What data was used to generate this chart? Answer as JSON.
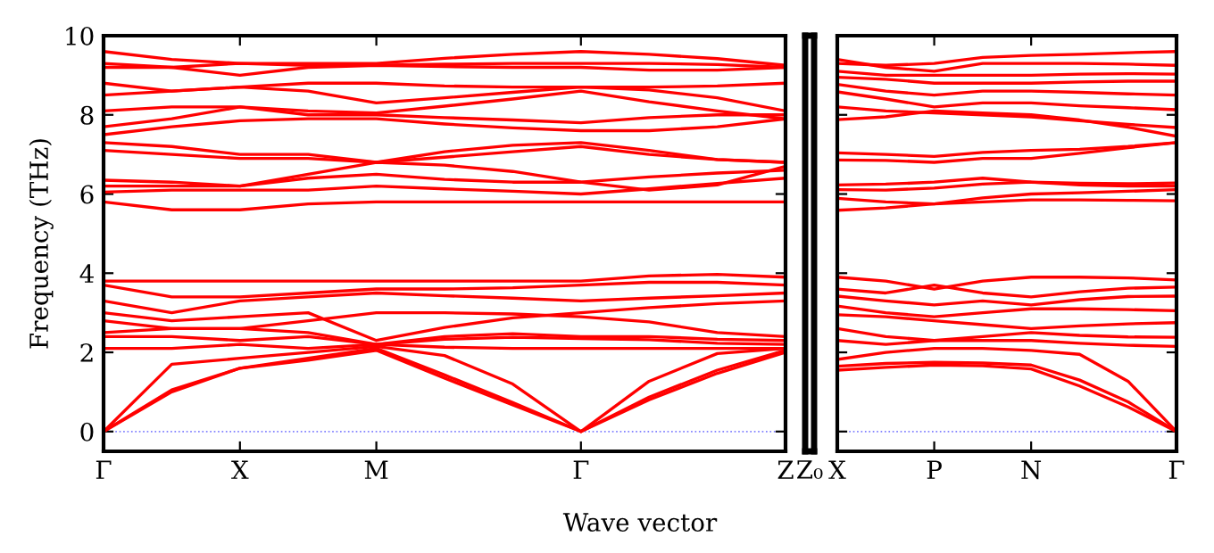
{
  "chart_data": [
    {
      "type": "line",
      "ylabel": "Frequency (THz)",
      "xlabel": "Wave vector",
      "categories": [
        "Γ",
        null,
        "X",
        null,
        "M",
        null,
        null,
        "Γ",
        null,
        null,
        "Z"
      ],
      "ylim": [
        -0.5,
        10
      ],
      "yticks": [
        0,
        2,
        4,
        6,
        8,
        10
      ],
      "grid": false,
      "marker": "none",
      "line_style": "solid",
      "ref_lines": [
        {
          "axis": "y",
          "value": 0,
          "color": "#8080ff",
          "line_style": "dotted"
        }
      ],
      "series": [
        {
          "color": "#ff0000",
          "values": [
            0,
            1.0,
            1.6,
            1.8,
            2.05,
            1.35,
            0.67,
            0,
            0.8,
            1.47,
            2.0
          ]
        },
        {
          "color": "#ff0000",
          "values": [
            0,
            1.05,
            1.6,
            1.85,
            2.1,
            1.43,
            0.73,
            0,
            0.87,
            1.55,
            2.05
          ]
        },
        {
          "color": "#ff0000",
          "values": [
            0,
            1.7,
            1.85,
            2.0,
            2.15,
            1.92,
            1.2,
            0,
            1.27,
            1.97,
            2.1
          ]
        },
        {
          "color": "#ff0000",
          "values": [
            2.1,
            2.1,
            2.2,
            2.1,
            2.2,
            2.13,
            2.1,
            2.1,
            2.1,
            2.1,
            2.1
          ]
        },
        {
          "color": "#ff0000",
          "values": [
            2.4,
            2.4,
            2.3,
            2.4,
            2.2,
            2.33,
            2.38,
            2.35,
            2.32,
            2.23,
            2.2
          ]
        },
        {
          "color": "#ff0000",
          "values": [
            2.5,
            2.6,
            2.6,
            2.5,
            2.2,
            2.4,
            2.47,
            2.4,
            2.4,
            2.33,
            2.3
          ]
        },
        {
          "color": "#ff0000",
          "values": [
            2.8,
            2.6,
            2.6,
            2.8,
            3.0,
            3.0,
            2.97,
            2.9,
            2.77,
            2.5,
            2.4
          ]
        },
        {
          "color": "#ff0000",
          "values": [
            3.0,
            2.8,
            2.9,
            3.0,
            2.3,
            2.63,
            2.87,
            3.0,
            3.13,
            3.23,
            3.3
          ]
        },
        {
          "color": "#ff0000",
          "values": [
            3.3,
            3.0,
            3.3,
            3.4,
            3.5,
            3.43,
            3.37,
            3.3,
            3.37,
            3.43,
            3.5
          ]
        },
        {
          "color": "#ff0000",
          "values": [
            3.7,
            3.4,
            3.4,
            3.5,
            3.6,
            3.6,
            3.63,
            3.7,
            3.77,
            3.77,
            3.7
          ]
        },
        {
          "color": "#ff0000",
          "values": [
            3.8,
            3.8,
            3.8,
            3.8,
            3.8,
            3.8,
            3.8,
            3.8,
            3.93,
            3.97,
            3.9
          ]
        },
        {
          "color": "#ff0000",
          "values": [
            5.8,
            5.6,
            5.6,
            5.75,
            5.8,
            5.8,
            5.8,
            5.8,
            5.8,
            5.8,
            5.8
          ]
        },
        {
          "color": "#ff0000",
          "values": [
            6.05,
            6.1,
            6.1,
            6.1,
            6.2,
            6.13,
            6.07,
            6.0,
            6.13,
            6.27,
            6.4
          ]
        },
        {
          "color": "#ff0000",
          "values": [
            6.2,
            6.2,
            6.2,
            6.4,
            6.5,
            6.37,
            6.3,
            6.3,
            6.43,
            6.53,
            6.6
          ]
        },
        {
          "color": "#ff0000",
          "values": [
            6.35,
            6.3,
            6.2,
            6.5,
            6.8,
            6.73,
            6.57,
            6.3,
            6.1,
            6.23,
            6.7
          ]
        },
        {
          "color": "#ff0000",
          "values": [
            7.1,
            7.0,
            6.9,
            6.9,
            6.8,
            6.93,
            7.07,
            7.2,
            7.0,
            6.87,
            6.8
          ]
        },
        {
          "color": "#ff0000",
          "values": [
            7.3,
            7.2,
            7.0,
            7.0,
            6.8,
            7.07,
            7.23,
            7.3,
            7.1,
            6.87,
            6.8
          ]
        },
        {
          "color": "#ff0000",
          "values": [
            7.5,
            7.7,
            7.85,
            7.9,
            7.9,
            7.77,
            7.67,
            7.6,
            7.6,
            7.7,
            7.9
          ]
        },
        {
          "color": "#ff0000",
          "values": [
            7.7,
            7.9,
            8.2,
            8.0,
            8.0,
            7.93,
            7.87,
            7.8,
            7.93,
            8.0,
            8.0
          ]
        },
        {
          "color": "#ff0000",
          "values": [
            8.1,
            8.2,
            8.2,
            8.1,
            8.05,
            8.22,
            8.4,
            8.6,
            8.33,
            8.1,
            7.9
          ]
        },
        {
          "color": "#ff0000",
          "values": [
            8.5,
            8.6,
            8.7,
            8.6,
            8.3,
            8.43,
            8.57,
            8.7,
            8.63,
            8.43,
            8.1
          ]
        },
        {
          "color": "#ff0000",
          "values": [
            8.8,
            8.6,
            8.7,
            8.8,
            8.8,
            8.73,
            8.7,
            8.7,
            8.7,
            8.73,
            8.8
          ]
        },
        {
          "color": "#ff0000",
          "values": [
            9.2,
            9.2,
            9.0,
            9.2,
            9.25,
            9.22,
            9.2,
            9.2,
            9.13,
            9.13,
            9.2
          ]
        },
        {
          "color": "#ff0000",
          "values": [
            9.3,
            9.2,
            9.3,
            9.25,
            9.25,
            9.28,
            9.3,
            9.3,
            9.3,
            9.27,
            9.2
          ]
        },
        {
          "color": "#ff0000",
          "values": [
            9.6,
            9.4,
            9.3,
            9.3,
            9.3,
            9.43,
            9.53,
            9.6,
            9.53,
            9.42,
            9.25
          ]
        }
      ]
    },
    {
      "type": "other",
      "annotations": [
        "Z₀"
      ]
    },
    {
      "type": "line",
      "categories": [
        "X",
        null,
        "P",
        null,
        "N",
        null,
        null,
        "Γ"
      ],
      "ylim": [
        -0.5,
        10
      ],
      "yticks": [
        0,
        2,
        4,
        6,
        8,
        10
      ],
      "tick_labels": "x",
      "grid": false,
      "marker": "none",
      "line_style": "solid",
      "ref_lines": [
        {
          "axis": "y",
          "value": 0,
          "color": "#8080ff",
          "line_style": "dotted"
        }
      ],
      "series": [
        {
          "color": "#ff0000",
          "values": [
            1.55,
            1.62,
            1.68,
            1.66,
            1.58,
            1.15,
            0.62,
            0
          ]
        },
        {
          "color": "#ff0000",
          "values": [
            1.65,
            1.72,
            1.75,
            1.73,
            1.68,
            1.3,
            0.75,
            0
          ]
        },
        {
          "color": "#ff0000",
          "values": [
            1.82,
            2.0,
            2.1,
            2.1,
            2.05,
            1.95,
            1.27,
            0
          ]
        },
        {
          "color": "#ff0000",
          "values": [
            2.3,
            2.2,
            2.3,
            2.3,
            2.3,
            2.23,
            2.18,
            2.15
          ]
        },
        {
          "color": "#ff0000",
          "values": [
            2.6,
            2.4,
            2.3,
            2.4,
            2.5,
            2.43,
            2.39,
            2.38
          ]
        },
        {
          "color": "#ff0000",
          "values": [
            2.95,
            2.9,
            2.8,
            2.7,
            2.6,
            2.67,
            2.72,
            2.75
          ]
        },
        {
          "color": "#ff0000",
          "values": [
            3.17,
            3.0,
            2.9,
            3.0,
            3.1,
            3.1,
            3.08,
            3.05
          ]
        },
        {
          "color": "#ff0000",
          "values": [
            3.42,
            3.3,
            3.2,
            3.3,
            3.2,
            3.33,
            3.41,
            3.42
          ]
        },
        {
          "color": "#ff0000",
          "values": [
            3.6,
            3.5,
            3.7,
            3.5,
            3.4,
            3.53,
            3.62,
            3.65
          ]
        },
        {
          "color": "#ff0000",
          "values": [
            3.9,
            3.8,
            3.6,
            3.8,
            3.9,
            3.9,
            3.88,
            3.83
          ]
        },
        {
          "color": "#ff0000",
          "values": [
            5.59,
            5.65,
            5.75,
            5.8,
            5.85,
            5.85,
            5.84,
            5.83
          ]
        },
        {
          "color": "#ff0000",
          "values": [
            5.89,
            5.8,
            5.75,
            5.9,
            6.0,
            6.03,
            6.07,
            6.11
          ]
        },
        {
          "color": "#ff0000",
          "values": [
            6.11,
            6.1,
            6.15,
            6.25,
            6.3,
            6.23,
            6.2,
            6.2
          ]
        },
        {
          "color": "#ff0000",
          "values": [
            6.23,
            6.25,
            6.3,
            6.4,
            6.3,
            6.27,
            6.26,
            6.28
          ]
        },
        {
          "color": "#ff0000",
          "values": [
            6.86,
            6.85,
            6.8,
            6.9,
            6.9,
            7.03,
            7.17,
            7.3
          ]
        },
        {
          "color": "#ff0000",
          "values": [
            7.04,
            7.0,
            6.95,
            7.05,
            7.1,
            7.13,
            7.2,
            7.3
          ]
        },
        {
          "color": "#ff0000",
          "values": [
            7.88,
            7.95,
            8.1,
            8.05,
            8.0,
            7.87,
            7.69,
            7.46
          ]
        },
        {
          "color": "#ff0000",
          "values": [
            8.2,
            8.1,
            8.05,
            8.0,
            7.95,
            7.85,
            7.76,
            7.68
          ]
        },
        {
          "color": "#ff0000",
          "values": [
            8.58,
            8.4,
            8.2,
            8.3,
            8.3,
            8.23,
            8.18,
            8.13
          ]
        },
        {
          "color": "#ff0000",
          "values": [
            8.77,
            8.6,
            8.5,
            8.6,
            8.6,
            8.57,
            8.53,
            8.5
          ]
        },
        {
          "color": "#ff0000",
          "values": [
            8.95,
            8.9,
            8.8,
            8.8,
            8.8,
            8.83,
            8.85,
            8.85
          ]
        },
        {
          "color": "#ff0000",
          "values": [
            9.1,
            9.0,
            9.0,
            9.0,
            9.0,
            9.03,
            9.04,
            9.03
          ]
        },
        {
          "color": "#ff0000",
          "values": [
            9.4,
            9.2,
            9.1,
            9.3,
            9.3,
            9.3,
            9.28,
            9.25
          ]
        },
        {
          "color": "#ff0000",
          "values": [
            9.3,
            9.25,
            9.3,
            9.45,
            9.5,
            9.53,
            9.57,
            9.6
          ]
        }
      ]
    }
  ]
}
